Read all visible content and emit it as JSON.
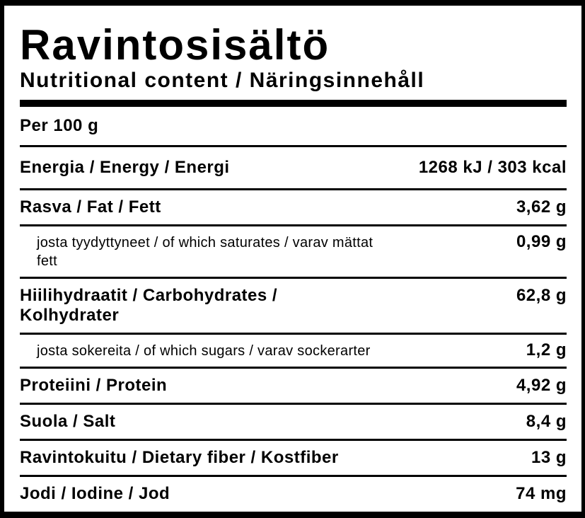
{
  "header": {
    "title": "Ravintosisältö",
    "subtitle": "Nutritional content / Näringsinnehåll"
  },
  "serving": {
    "label": "Per 100 g"
  },
  "rows": [
    {
      "label": "Energia / Energy / Energi",
      "value": "1268 kJ / 303 kcal",
      "indent": false
    },
    {
      "label": "Rasva / Fat / Fett",
      "value": "3,62 g",
      "indent": false
    },
    {
      "label": "josta tyydyttyneet / of which saturates / varav mättat fett",
      "value": "0,99 g",
      "indent": true
    },
    {
      "label": "Hiilihydraatit / Carbohydrates / Kolhydrater",
      "value": "62,8 g",
      "indent": false
    },
    {
      "label": "josta sokereita / of which sugars / varav sockerarter",
      "value": "1,2 g",
      "indent": true
    },
    {
      "label": "Proteiini / Protein",
      "value": "4,92 g",
      "indent": false
    },
    {
      "label": "Suola / Salt",
      "value": "8,4 g",
      "indent": false
    },
    {
      "label": "Ravintokuitu / Dietary fiber / Kostfiber",
      "value": "13 g",
      "indent": false
    },
    {
      "label": "Jodi / Iodine / Jod",
      "value": "74 mg",
      "indent": false
    }
  ],
  "colors": {
    "text": "#000000",
    "background": "#ffffff",
    "border": "#000000"
  }
}
